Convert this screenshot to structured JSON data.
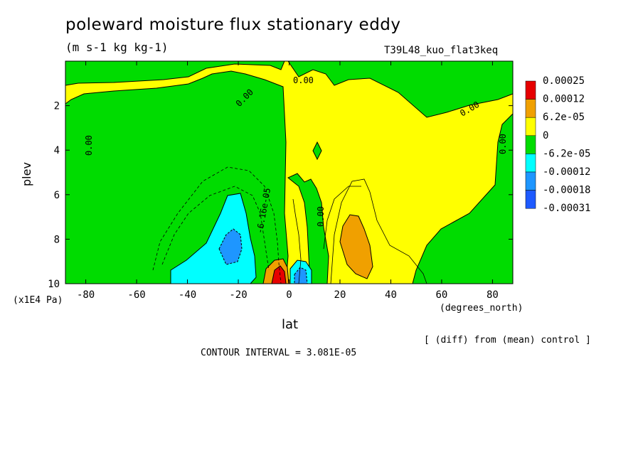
{
  "title": "poleward moisture flux stationary eddy",
  "units": "(m s-1 kg kg-1)",
  "run_name": "T39L48_kuo_flat3keq",
  "subtitle_right": "[ (diff) from (mean) control ]",
  "contour_interval": "CONTOUR INTERVAL = 3.081E-05",
  "colors": {
    "c_neg4": "#1e5aff",
    "c_neg3": "#1e96ff",
    "c_neg2": "#00ffff",
    "c_neg1": "#00dc00",
    "c_pos1": "#ffff00",
    "c_pos2": "#f0a000",
    "c_pos3": "#e60000"
  },
  "chart_data": {
    "type": "heatmap",
    "title": "poleward moisture flux stationary eddy",
    "units": "(m s-1 kg kg-1)",
    "xlabel": "lat",
    "x_unit_label": "(degrees_north)",
    "ylabel": "plev",
    "y_unit_label": "(x1E4 Pa)",
    "xlim": [
      -88,
      88
    ],
    "ylim": [
      10,
      0
    ],
    "x_ticks": [
      -80,
      -60,
      -40,
      -20,
      0,
      20,
      40,
      60,
      80
    ],
    "y_ticks": [
      2,
      4,
      6,
      8,
      10
    ],
    "colorbar": {
      "labels": [
        "0.00025",
        "0.00012",
        "6.2e-05",
        "0",
        "-6.2e-05",
        "-0.00012",
        "-0.00018",
        "-0.00031"
      ],
      "colors": [
        "#e60000",
        "#f0a000",
        "#ffff00",
        "#00dc00",
        "#00ffff",
        "#1e96ff",
        "#1e5aff"
      ]
    },
    "contour_labels": [
      "0.00",
      "0.00",
      "0.00",
      "0.00",
      "0.00",
      "0.00",
      "-6.16e-05"
    ],
    "regions": [
      {
        "level": "neg1",
        "note": "broad negative field south of 0 lat and at high northern latitudes"
      },
      {
        "level": "pos1",
        "note": "upper levels and 0-65N"
      },
      {
        "level": "neg2",
        "center_lat": -25,
        "center_plev": 8.5
      },
      {
        "level": "neg3",
        "center_lat": -24,
        "center_plev": 8.3
      },
      {
        "level": "neg3",
        "center_lat": 5,
        "center_plev": 9.6
      },
      {
        "level": "pos2",
        "center_lat": 28,
        "center_plev": 8.5
      },
      {
        "level": "pos3",
        "center_lat": -4,
        "center_plev": 9.6
      }
    ]
  }
}
